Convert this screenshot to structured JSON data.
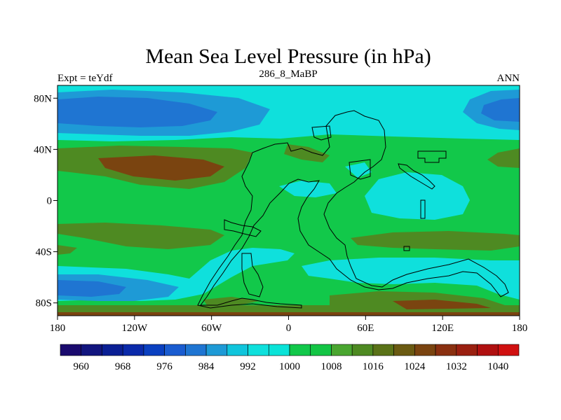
{
  "chart_data": {
    "type": "heatmap",
    "title": "Mean Sea Level Pressure (in hPa)",
    "left_string": "Expt = teYdf",
    "center_string": "286_8_MaBP",
    "right_string": "ANN",
    "x_range": [
      -180,
      180
    ],
    "y_range": [
      -90,
      90
    ],
    "x_ticks": [
      {
        "value": -180,
        "label": "180"
      },
      {
        "value": -120,
        "label": "120W"
      },
      {
        "value": -60,
        "label": "60W"
      },
      {
        "value": 0,
        "label": "0"
      },
      {
        "value": 60,
        "label": "60E"
      },
      {
        "value": 120,
        "label": "120E"
      },
      {
        "value": 180,
        "label": "180"
      }
    ],
    "y_ticks": [
      {
        "value": 80,
        "label": "80N"
      },
      {
        "value": 40,
        "label": "40N"
      },
      {
        "value": 0,
        "label": "0"
      },
      {
        "value": -40,
        "label": "40S"
      },
      {
        "value": -80,
        "label": "80S"
      }
    ],
    "colorbar": {
      "colors": [
        "#1a0a6e",
        "#12157e",
        "#0a1f94",
        "#0a2aaa",
        "#0a40c0",
        "#1a5cd0",
        "#1f75d2",
        "#1e9ad6",
        "#10c5dc",
        "#0fe0dc",
        "#0ae3d8",
        "#12c84a",
        "#13c545",
        "#4aa630",
        "#4e8a22",
        "#5a7218",
        "#6a5a12",
        "#7a4410",
        "#8a3010",
        "#9a2010",
        "#b01010",
        "#d01010"
      ],
      "labels": [
        {
          "after_box": 1,
          "text": "960"
        },
        {
          "after_box": 3,
          "text": "968"
        },
        {
          "after_box": 5,
          "text": "976"
        },
        {
          "after_box": 7,
          "text": "984"
        },
        {
          "after_box": 9,
          "text": "992"
        },
        {
          "after_box": 11,
          "text": "1000"
        },
        {
          "after_box": 13,
          "text": "1008"
        },
        {
          "after_box": 15,
          "text": "1016"
        },
        {
          "after_box": 17,
          "text": "1024"
        },
        {
          "after_box": 19,
          "text": "1032"
        },
        {
          "after_box": 21,
          "text": "1040"
        }
      ]
    },
    "fields": {
      "background": "#12c84a",
      "cyan": "#0fe0dc",
      "light_blue": "#1e9ad6",
      "blue": "#1f75d2",
      "olive": "#4e8a22",
      "brown": "#7a4410"
    }
  }
}
